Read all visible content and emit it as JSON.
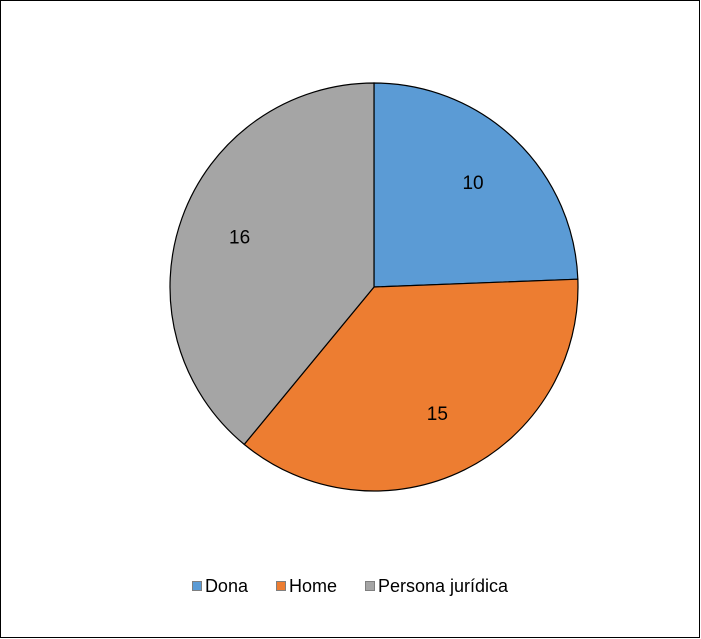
{
  "chart_data": {
    "type": "pie",
    "categories": [
      "Dona",
      "Home",
      "Persona jurídica"
    ],
    "values": [
      10,
      15,
      16
    ],
    "data_labels": [
      "10",
      "15",
      "16"
    ],
    "colors": [
      "#5B9BD5",
      "#ED7D31",
      "#A5A5A5"
    ],
    "slice_border_color": "#000000",
    "start_angle": "12 o'clock",
    "direction": "clockwise",
    "legend_position": "bottom"
  }
}
